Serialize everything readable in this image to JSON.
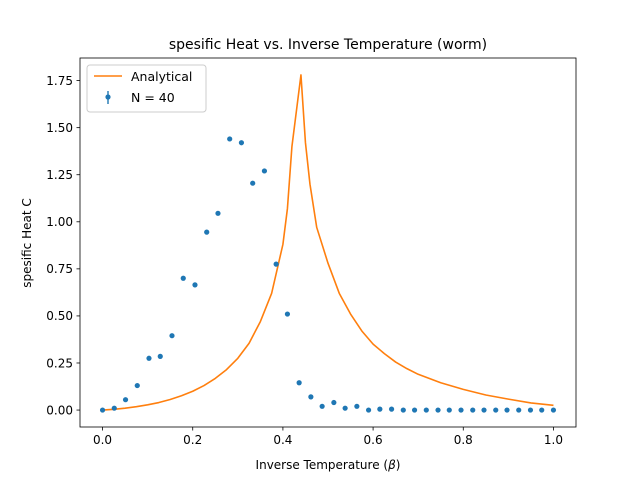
{
  "chart_data": {
    "type": "scatter",
    "title": "spesific Heat vs. Inverse Temperature (worm)",
    "xlabel_text": "Inverse Temperature (",
    "xlabel_symbol": "β",
    "xlabel_close": ")",
    "ylabel": "spesific Heat C",
    "xlim": [
      -0.05,
      1.05
    ],
    "ylim": [
      -0.09,
      1.87
    ],
    "xticks": [
      0.0,
      0.2,
      0.4,
      0.6,
      0.8,
      1.0
    ],
    "xtick_labels": [
      "0.0",
      "0.2",
      "0.4",
      "0.6",
      "0.8",
      "1.0"
    ],
    "yticks": [
      0.0,
      0.25,
      0.5,
      0.75,
      1.0,
      1.25,
      1.5,
      1.75
    ],
    "ytick_labels": [
      "0.00",
      "0.25",
      "0.50",
      "0.75",
      "1.00",
      "1.25",
      "1.50",
      "1.75"
    ],
    "legend_position": "upper-left",
    "series": [
      {
        "name": "Analytical",
        "kind": "line",
        "color": "#ff7f0e",
        "x": [
          0.0,
          0.025,
          0.05,
          0.075,
          0.1,
          0.125,
          0.15,
          0.175,
          0.2,
          0.225,
          0.25,
          0.275,
          0.3,
          0.325,
          0.35,
          0.375,
          0.4,
          0.41,
          0.42,
          0.44,
          0.45,
          0.46,
          0.475,
          0.5,
          0.525,
          0.55,
          0.575,
          0.6,
          0.625,
          0.65,
          0.675,
          0.7,
          0.75,
          0.8,
          0.85,
          0.9,
          0.95,
          1.0
        ],
        "y": [
          0.0,
          0.004,
          0.01,
          0.018,
          0.028,
          0.04,
          0.056,
          0.076,
          0.1,
          0.13,
          0.168,
          0.215,
          0.275,
          0.355,
          0.47,
          0.62,
          0.88,
          1.07,
          1.4,
          1.78,
          1.42,
          1.2,
          0.97,
          0.78,
          0.62,
          0.51,
          0.42,
          0.35,
          0.3,
          0.255,
          0.22,
          0.19,
          0.145,
          0.11,
          0.08,
          0.058,
          0.038,
          0.025
        ]
      },
      {
        "name": "N = 40",
        "kind": "errorbar-points",
        "color": "#1f77b4",
        "x": [
          0.0,
          0.026,
          0.051,
          0.077,
          0.103,
          0.128,
          0.154,
          0.179,
          0.205,
          0.231,
          0.256,
          0.282,
          0.308,
          0.333,
          0.359,
          0.385,
          0.41,
          0.436,
          0.462,
          0.487,
          0.513,
          0.538,
          0.564,
          0.59,
          0.615,
          0.641,
          0.667,
          0.692,
          0.718,
          0.744,
          0.769,
          0.795,
          0.821,
          0.846,
          0.872,
          0.897,
          0.923,
          0.949,
          0.974,
          1.0
        ],
        "y": [
          0.0,
          0.01,
          0.055,
          0.13,
          0.275,
          0.285,
          0.395,
          0.7,
          0.665,
          0.945,
          1.045,
          1.44,
          1.42,
          1.205,
          1.27,
          0.775,
          0.51,
          0.145,
          0.07,
          0.02,
          0.04,
          0.01,
          0.02,
          0.0,
          0.005,
          0.005,
          0.0,
          0.0,
          0.0,
          0.0,
          0.0,
          0.0,
          0.0,
          0.0,
          0.0,
          0.0,
          0.0,
          0.0,
          0.0,
          0.0
        ]
      }
    ]
  }
}
